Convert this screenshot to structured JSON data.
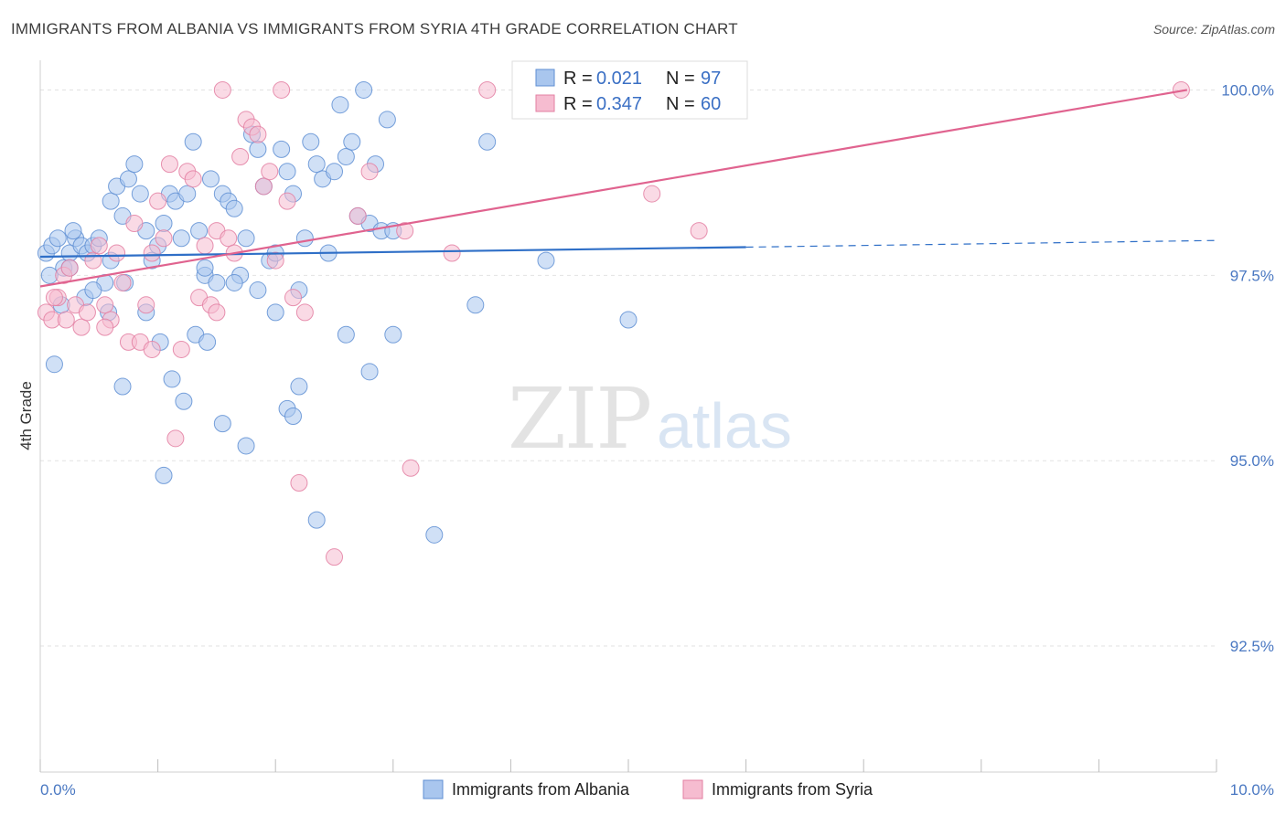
{
  "title": "IMMIGRANTS FROM ALBANIA VS IMMIGRANTS FROM SYRIA 4TH GRADE CORRELATION CHART",
  "source": "Source: ZipAtlas.com",
  "watermark": {
    "zip": "ZIP",
    "atlas": "atlas"
  },
  "legend_top": {
    "r_label": "R =",
    "n_label": "N =",
    "rows": [
      {
        "series": "albania",
        "r": "0.021",
        "n": "97"
      },
      {
        "series": "syria",
        "r": "0.347",
        "n": "60"
      }
    ]
  },
  "legend_bottom": [
    {
      "series": "albania",
      "label": "Immigrants from Albania"
    },
    {
      "series": "syria",
      "label": "Immigrants from Syria"
    }
  ],
  "colors": {
    "albania_fill": "#a9c6ee",
    "albania_stroke": "#5f8fd3",
    "albania_line": "#2f6fc7",
    "syria_fill": "#f6bcd0",
    "syria_stroke": "#e37fa2",
    "syria_line": "#e0638f",
    "grid": "#e2e2e2"
  },
  "chart_data": {
    "type": "scatter",
    "title": "IMMIGRANTS FROM ALBANIA VS IMMIGRANTS FROM SYRIA 4TH GRADE CORRELATION CHART",
    "xlabel": "",
    "ylabel": "4th Grade",
    "xlim": [
      0.0,
      10.0
    ],
    "ylim": [
      90.8,
      100.4
    ],
    "x_tick_labels": [
      {
        "value": 0.0,
        "label": "0.0%"
      },
      {
        "value": 10.0,
        "label": "10.0%"
      }
    ],
    "y_tick_labels": [
      {
        "value": 100.0,
        "label": "100.0%"
      },
      {
        "value": 97.5,
        "label": "97.5%"
      },
      {
        "value": 95.0,
        "label": "95.0%"
      },
      {
        "value": 92.5,
        "label": "92.5%"
      }
    ],
    "grid": true,
    "series": [
      {
        "name": "Immigrants from Albania",
        "key": "albania",
        "points": [
          [
            0.05,
            97.8
          ],
          [
            0.1,
            97.9
          ],
          [
            0.15,
            98.0
          ],
          [
            0.2,
            97.6
          ],
          [
            0.25,
            97.8
          ],
          [
            0.3,
            98.0
          ],
          [
            0.35,
            97.9
          ],
          [
            0.4,
            97.8
          ],
          [
            0.45,
            97.9
          ],
          [
            0.5,
            98.0
          ],
          [
            0.55,
            97.4
          ],
          [
            0.6,
            98.5
          ],
          [
            0.65,
            98.7
          ],
          [
            0.7,
            98.3
          ],
          [
            0.75,
            98.8
          ],
          [
            0.8,
            99.0
          ],
          [
            0.85,
            98.6
          ],
          [
            0.9,
            98.1
          ],
          [
            0.95,
            97.7
          ],
          [
            1.0,
            97.9
          ],
          [
            1.05,
            98.2
          ],
          [
            1.1,
            98.6
          ],
          [
            1.15,
            98.5
          ],
          [
            1.2,
            98.0
          ],
          [
            1.25,
            98.6
          ],
          [
            1.3,
            99.3
          ],
          [
            1.35,
            98.1
          ],
          [
            1.4,
            97.5
          ],
          [
            1.45,
            98.8
          ],
          [
            1.5,
            97.4
          ],
          [
            1.55,
            98.6
          ],
          [
            1.6,
            98.5
          ],
          [
            1.65,
            98.4
          ],
          [
            1.7,
            97.5
          ],
          [
            1.75,
            98.0
          ],
          [
            1.8,
            99.4
          ],
          [
            1.85,
            99.2
          ],
          [
            1.9,
            98.7
          ],
          [
            1.95,
            97.7
          ],
          [
            2.0,
            97.8
          ],
          [
            2.05,
            99.2
          ],
          [
            2.1,
            98.9
          ],
          [
            2.15,
            98.6
          ],
          [
            2.2,
            97.3
          ],
          [
            2.25,
            98.0
          ],
          [
            2.3,
            99.3
          ],
          [
            2.35,
            99.0
          ],
          [
            2.4,
            98.8
          ],
          [
            2.45,
            97.8
          ],
          [
            2.5,
            98.9
          ],
          [
            2.55,
            99.8
          ],
          [
            2.6,
            99.1
          ],
          [
            2.65,
            99.3
          ],
          [
            2.7,
            98.3
          ],
          [
            2.75,
            100.0
          ],
          [
            2.8,
            98.2
          ],
          [
            2.85,
            99.0
          ],
          [
            2.9,
            98.1
          ],
          [
            2.95,
            99.6
          ],
          [
            3.0,
            98.1
          ],
          [
            0.08,
            97.5
          ],
          [
            0.18,
            97.1
          ],
          [
            0.28,
            98.1
          ],
          [
            0.38,
            97.2
          ],
          [
            0.58,
            97.0
          ],
          [
            0.72,
            97.4
          ],
          [
            0.9,
            97.0
          ],
          [
            1.02,
            96.6
          ],
          [
            1.12,
            96.1
          ],
          [
            1.22,
            95.8
          ],
          [
            1.32,
            96.7
          ],
          [
            1.42,
            96.6
          ],
          [
            1.55,
            95.5
          ],
          [
            1.65,
            97.4
          ],
          [
            1.75,
            95.2
          ],
          [
            1.85,
            97.3
          ],
          [
            2.0,
            97.0
          ],
          [
            2.1,
            95.7
          ],
          [
            2.2,
            96.0
          ],
          [
            2.35,
            94.2
          ],
          [
            2.6,
            96.7
          ],
          [
            2.8,
            96.2
          ],
          [
            3.0,
            96.7
          ],
          [
            3.35,
            94.0
          ],
          [
            3.7,
            97.1
          ],
          [
            4.3,
            97.7
          ],
          [
            5.0,
            96.9
          ],
          [
            5.2,
            100.0
          ],
          [
            3.8,
            99.3
          ],
          [
            0.12,
            96.3
          ],
          [
            0.7,
            96.0
          ],
          [
            1.05,
            94.8
          ],
          [
            2.15,
            95.6
          ],
          [
            1.4,
            97.6
          ],
          [
            0.45,
            97.3
          ],
          [
            0.25,
            97.6
          ],
          [
            0.6,
            97.7
          ]
        ]
      },
      {
        "name": "Immigrants from Syria",
        "key": "syria",
        "points": [
          [
            0.05,
            97.0
          ],
          [
            0.1,
            96.9
          ],
          [
            0.15,
            97.2
          ],
          [
            0.2,
            97.5
          ],
          [
            0.25,
            97.6
          ],
          [
            0.3,
            97.1
          ],
          [
            0.35,
            96.8
          ],
          [
            0.4,
            97.0
          ],
          [
            0.45,
            97.7
          ],
          [
            0.5,
            97.9
          ],
          [
            0.55,
            97.1
          ],
          [
            0.6,
            96.9
          ],
          [
            0.65,
            97.8
          ],
          [
            0.7,
            97.4
          ],
          [
            0.75,
            96.6
          ],
          [
            0.8,
            98.2
          ],
          [
            0.85,
            96.6
          ],
          [
            0.9,
            97.1
          ],
          [
            0.95,
            97.8
          ],
          [
            1.0,
            98.5
          ],
          [
            1.05,
            98.0
          ],
          [
            1.1,
            99.0
          ],
          [
            1.15,
            95.3
          ],
          [
            1.2,
            96.5
          ],
          [
            1.25,
            98.9
          ],
          [
            1.3,
            98.8
          ],
          [
            1.35,
            97.2
          ],
          [
            1.4,
            97.9
          ],
          [
            1.45,
            97.1
          ],
          [
            1.5,
            98.1
          ],
          [
            1.55,
            100.0
          ],
          [
            1.6,
            98.0
          ],
          [
            1.65,
            97.8
          ],
          [
            1.7,
            99.1
          ],
          [
            1.75,
            99.6
          ],
          [
            1.8,
            99.5
          ],
          [
            1.85,
            99.4
          ],
          [
            1.9,
            98.7
          ],
          [
            1.95,
            98.9
          ],
          [
            2.0,
            97.7
          ],
          [
            2.05,
            100.0
          ],
          [
            2.1,
            98.5
          ],
          [
            2.15,
            97.2
          ],
          [
            2.2,
            94.7
          ],
          [
            2.25,
            97.0
          ],
          [
            2.5,
            93.7
          ],
          [
            2.7,
            98.3
          ],
          [
            2.8,
            98.9
          ],
          [
            3.1,
            98.1
          ],
          [
            3.15,
            94.9
          ],
          [
            3.5,
            97.8
          ],
          [
            3.8,
            100.0
          ],
          [
            5.2,
            98.6
          ],
          [
            5.6,
            98.1
          ],
          [
            9.7,
            100.0
          ],
          [
            0.12,
            97.2
          ],
          [
            0.22,
            96.9
          ],
          [
            0.55,
            96.8
          ],
          [
            0.95,
            96.5
          ],
          [
            1.5,
            97.0
          ]
        ]
      }
    ],
    "trendlines": [
      {
        "series": "albania",
        "x": [
          0.0,
          6.0
        ],
        "y": [
          97.75,
          97.88
        ],
        "style": "solid"
      },
      {
        "series": "albania",
        "x": [
          6.0,
          10.0
        ],
        "y": [
          97.88,
          97.97
        ],
        "style": "dashed"
      },
      {
        "series": "syria",
        "x": [
          0.0,
          9.75
        ],
        "y": [
          97.35,
          100.0
        ],
        "style": "solid"
      }
    ]
  }
}
